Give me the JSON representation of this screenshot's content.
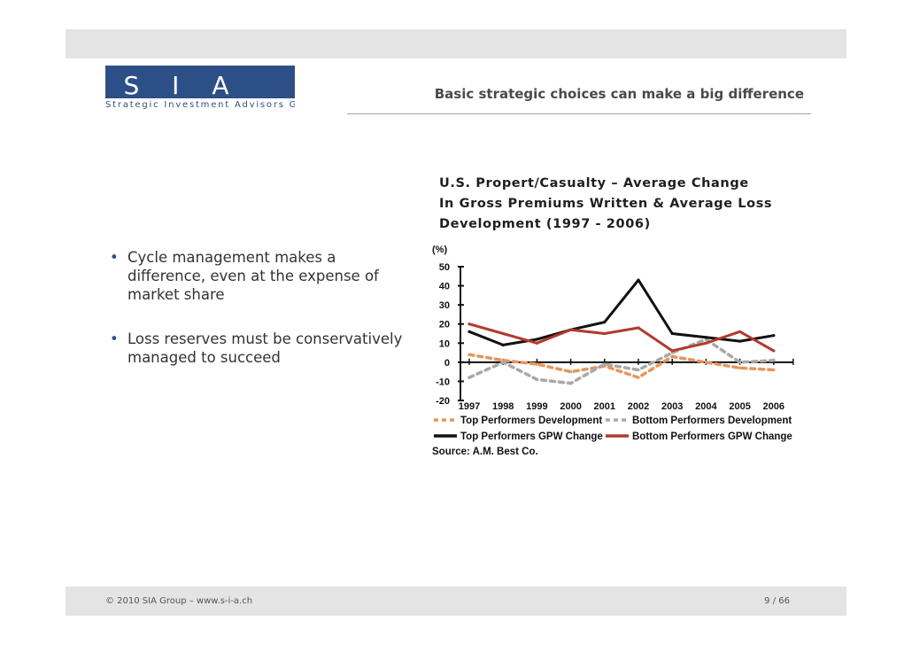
{
  "header": {
    "logo_text": "S I A",
    "logo_subtitle": "Strategic Investment Advisors Group",
    "slide_title": "Basic strategic choices can make a big difference"
  },
  "bullets": [
    "Cycle management makes a difference, even at the expense of market share",
    "Loss reserves must be conservatively managed to succeed"
  ],
  "footer": {
    "copyright": "© 2010 SIA Group – www.s-i-a.ch",
    "page": "9 / 66"
  },
  "colors": {
    "brand_blue": "#2d4f87",
    "bar_gray": "#e4e4e4",
    "top_dev": "#e8955a",
    "bottom_dev": "#a8a8a8",
    "top_gpw": "#111111",
    "bottom_gpw": "#b23a2e"
  },
  "chart_data": {
    "type": "line",
    "title_lines": [
      "U.S. Propert/Casualty – Average Change",
      "In Gross Premiums Written & Average Loss",
      "Development (1997 - 2006)"
    ],
    "ylabel": "(%)",
    "ylim": [
      -20,
      50
    ],
    "yticks": [
      50,
      40,
      30,
      20,
      10,
      0,
      -10,
      -20
    ],
    "categories": [
      "1997",
      "1998",
      "1999",
      "2000",
      "2001",
      "2002",
      "2003",
      "2004",
      "2005",
      "2006"
    ],
    "series": [
      {
        "name": "Top Performers Development",
        "style": "dashed",
        "color": "#e8955a",
        "values": [
          4,
          1,
          -1,
          -5,
          -2,
          -8,
          3,
          0,
          -3,
          -4
        ]
      },
      {
        "name": "Bottom Performers Development",
        "style": "dashed",
        "color": "#a8a8a8",
        "values": [
          -8,
          0,
          -9,
          -11,
          -1,
          -4,
          5,
          12,
          0,
          1
        ]
      },
      {
        "name": "Top Performers GPW Change",
        "style": "solid",
        "color": "#111111",
        "values": [
          16,
          9,
          12,
          17,
          21,
          43,
          15,
          13,
          11,
          14
        ]
      },
      {
        "name": "Bottom Performers GPW Change",
        "style": "solid",
        "color": "#b23a2e",
        "values": [
          20,
          15,
          10,
          17,
          15,
          18,
          6,
          10,
          16,
          6
        ]
      }
    ],
    "legend": [
      "Top Performers Development",
      "Bottom Performers Development",
      "Top Performers GPW Change",
      "Bottom Performers GPW Change"
    ],
    "source": "Source: A.M. Best Co."
  }
}
